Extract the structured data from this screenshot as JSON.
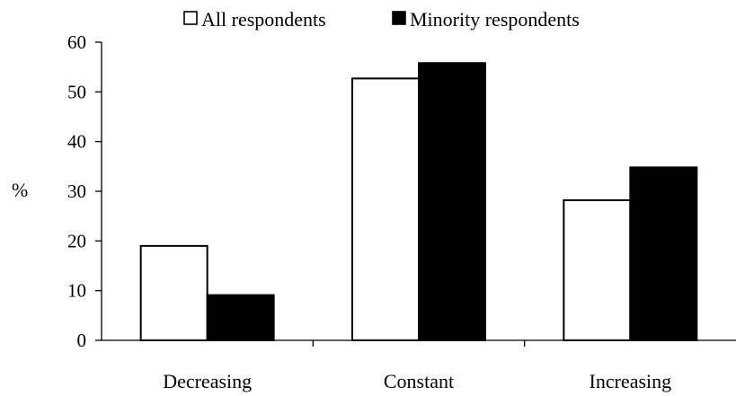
{
  "chart_data": {
    "type": "bar",
    "title": "",
    "xlabel": "",
    "ylabel": "%",
    "ylim": [
      0,
      60
    ],
    "yticks": [
      0,
      10,
      20,
      30,
      40,
      50,
      60
    ],
    "categories": [
      "Decreasing",
      "Constant",
      "Increasing"
    ],
    "series": [
      {
        "name": "All respondents",
        "values": [
          19,
          52.7,
          28.2
        ],
        "fill": "#ffffff",
        "stroke": "#000000"
      },
      {
        "name": "Minority respondents",
        "values": [
          9.1,
          55.8,
          34.8
        ],
        "fill": "#000000",
        "stroke": "#000000"
      }
    ],
    "grid": false,
    "legend": {
      "placement": "top-center"
    }
  }
}
